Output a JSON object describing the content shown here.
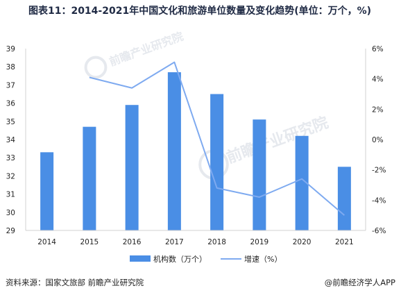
{
  "page": {
    "title": "图表11：2014-2021年中国文化和旅游单位数量及变化趋势(单位：万个，%)",
    "source": "资料来源：国家文旅部 前瞻产业研究院",
    "credit": "@前瞻经济学人APP",
    "watermark_text": "前瞻产业研究院"
  },
  "chart_data": {
    "type": "bar",
    "title": "图表11：2014-2021年中国文化和旅游单位数量及变化趋势(单位：万个，%)",
    "categories": [
      "2014",
      "2015",
      "2016",
      "2017",
      "2018",
      "2019",
      "2020",
      "2021"
    ],
    "series": [
      {
        "name": "机构数（万个）",
        "type": "bar",
        "axis": "left",
        "color": "#4a8ee5",
        "values": [
          33.3,
          34.7,
          35.9,
          37.7,
          36.5,
          35.1,
          34.2,
          32.5
        ]
      },
      {
        "name": "增速（%）",
        "type": "line",
        "axis": "right",
        "color": "#7eaaf0",
        "values": [
          null,
          4.1,
          3.4,
          5.1,
          -3.2,
          -3.8,
          -2.6,
          -5.0
        ]
      }
    ],
    "ylim_left": [
      29,
      39
    ],
    "ylim_right": [
      -6,
      6
    ],
    "yticks_left": [
      "29",
      "30",
      "31",
      "32",
      "33",
      "34",
      "35",
      "36",
      "37",
      "38",
      "39"
    ],
    "yticks_right": [
      "-6%",
      "-4%",
      "-2%",
      "0%",
      "2%",
      "4%",
      "6%"
    ],
    "legend_position": "bottom-center",
    "grid": false
  }
}
